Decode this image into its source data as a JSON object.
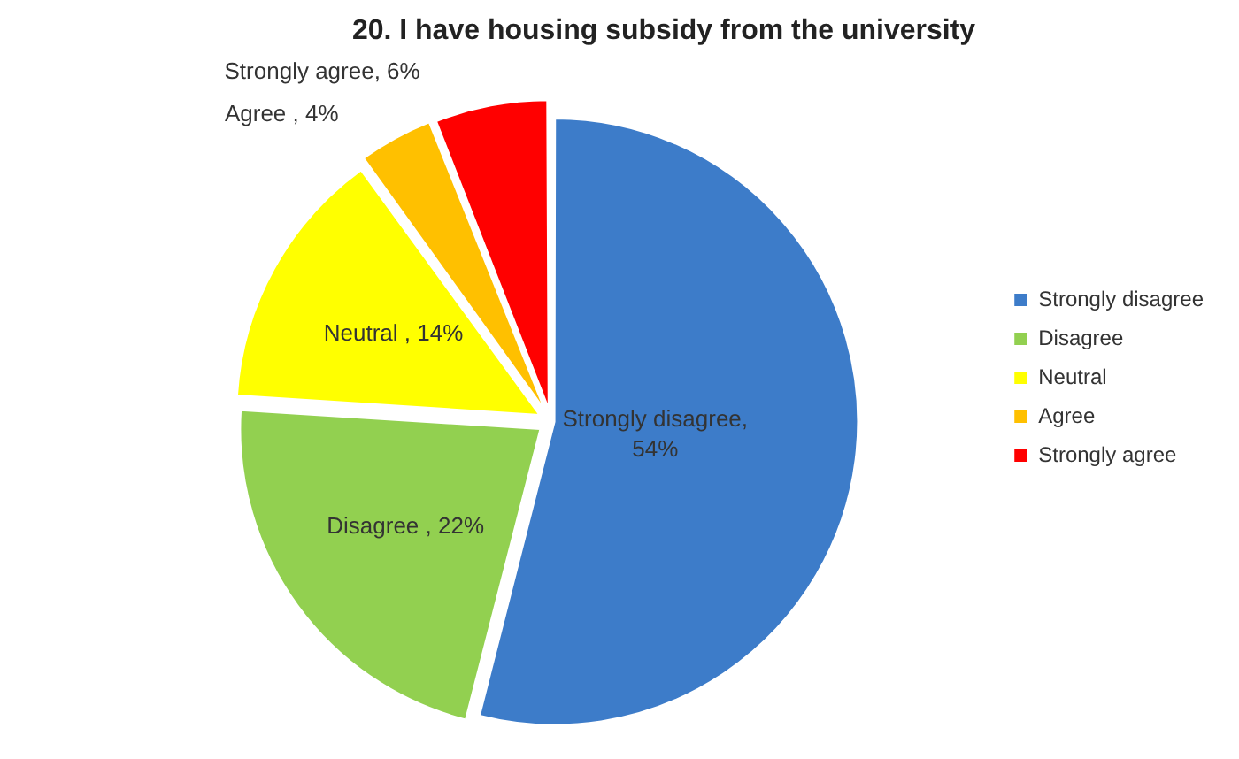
{
  "chart_data": {
    "type": "pie",
    "title": "20. I have housing subsidy from the university",
    "categories": [
      "Strongly disagree",
      "Disagree",
      "Neutral",
      "Agree",
      "Strongly agree"
    ],
    "values": [
      54,
      22,
      14,
      4,
      6
    ],
    "colors": [
      "#3d7cc9",
      "#92d050",
      "#ffff00",
      "#ffc000",
      "#ff0000"
    ],
    "value_labels": [
      "Strongly disagree, 54%",
      "Disagree , 22%",
      "Neutral , 14%",
      "Agree , 4%",
      "Strongly agree, 6%"
    ],
    "legend": "right"
  }
}
